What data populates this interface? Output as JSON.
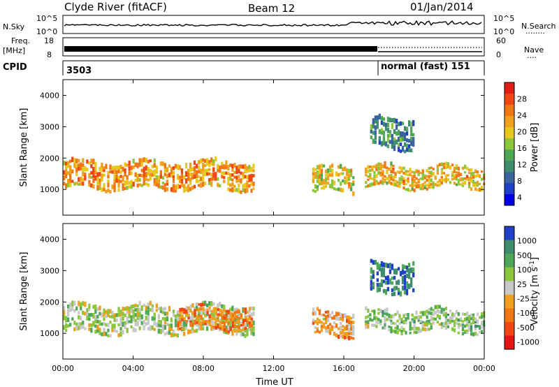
{
  "header": {
    "station": "Clyde River (fitACF)",
    "beam": "Beam 12",
    "date": "01/Jan/2014"
  },
  "status_panels": {
    "nsky": {
      "label": "N.Sky",
      "tick_top": "10^5",
      "tick_bottom": "10^0",
      "right_top": "10^5",
      "right_bottom": "10^0",
      "right_label": "N.Search",
      "right_legend": "........"
    },
    "freq": {
      "label_line1": "Freq.",
      "label_line2": "[MHz]",
      "tick_top": "18",
      "tick_bottom": "8",
      "right_top": "60",
      "right_bottom": "0",
      "right_label": "Nave",
      "right_legend": "...."
    },
    "cpid": {
      "label": "CPID",
      "segments": [
        {
          "text": "3503",
          "start_hour": 0
        },
        {
          "text": "normal (fast) 151",
          "start_hour": 18
        }
      ]
    }
  },
  "chart_data": [
    {
      "type": "heatmap",
      "name": "Power",
      "x": {
        "label": "Time UT",
        "range": [
          0,
          24
        ],
        "ticks": [
          "00:00",
          "04:00",
          "08:00",
          "12:00",
          "16:00",
          "20:00",
          "00:00"
        ]
      },
      "y": {
        "label": "Slant Range [km]",
        "range": [
          180,
          4500
        ],
        "ticks": [
          "1000",
          "2000",
          "3000",
          "4000"
        ]
      },
      "colorbar": {
        "label": "Power [dB]",
        "ticks": [
          "28",
          "24",
          "20",
          "16",
          "12",
          "8",
          "4"
        ],
        "range": [
          0,
          30
        ],
        "colors": [
          "#0000e6",
          "#2040c8",
          "#3a64a0",
          "#3f8c6e",
          "#4fa857",
          "#8cc63c",
          "#e6c81e",
          "#f0a01e",
          "#f07814",
          "#f04614",
          "#e01e14"
        ]
      },
      "bands": [
        {
          "t0": 0.0,
          "t1": 10.8,
          "r_center": 1450,
          "r_width": 900,
          "value": 22
        },
        {
          "t0": 14.2,
          "t1": 16.5,
          "r_center": 1300,
          "r_width": 800,
          "value": 18
        },
        {
          "t0": 17.2,
          "t1": 24.0,
          "r_center": 1400,
          "r_width": 700,
          "value": 20
        },
        {
          "t0": 17.5,
          "t1": 20.0,
          "r_center": 2800,
          "r_width": 1000,
          "value": 10
        }
      ]
    },
    {
      "type": "heatmap",
      "name": "Velocity",
      "x": {
        "label": "Time UT",
        "range": [
          0,
          24
        ],
        "ticks": [
          "00:00",
          "04:00",
          "08:00",
          "12:00",
          "16:00",
          "20:00",
          "00:00"
        ]
      },
      "y": {
        "label": "Slant Range [km]",
        "range": [
          180,
          4500
        ],
        "ticks": [
          "1000",
          "2000",
          "3000",
          "4000"
        ]
      },
      "colorbar": {
        "label": "Velocity [m s^-1]",
        "ticks": [
          "1000",
          "500",
          "100",
          "25",
          "-25",
          "-100",
          "-500",
          "-1000"
        ],
        "range": [
          -1000,
          1000
        ],
        "colors": [
          "#e61414",
          "#f04614",
          "#f07814",
          "#f0a01e",
          "#c8c8c8",
          "#8cc63c",
          "#4fa857",
          "#3f8c6e",
          "#2040c8"
        ]
      },
      "bands": [
        {
          "t0": 0.0,
          "t1": 10.8,
          "r_center": 1450,
          "r_width": 900,
          "value": 200
        },
        {
          "t0": 6.5,
          "t1": 10.8,
          "r_center": 1500,
          "r_width": 700,
          "value": -300
        },
        {
          "t0": 14.2,
          "t1": 16.5,
          "r_center": 1300,
          "r_width": 800,
          "value": -200
        },
        {
          "t0": 17.2,
          "t1": 24.0,
          "r_center": 1400,
          "r_width": 700,
          "value": 300
        },
        {
          "t0": 17.5,
          "t1": 20.0,
          "r_center": 2800,
          "r_width": 1000,
          "value": 800
        }
      ]
    }
  ]
}
